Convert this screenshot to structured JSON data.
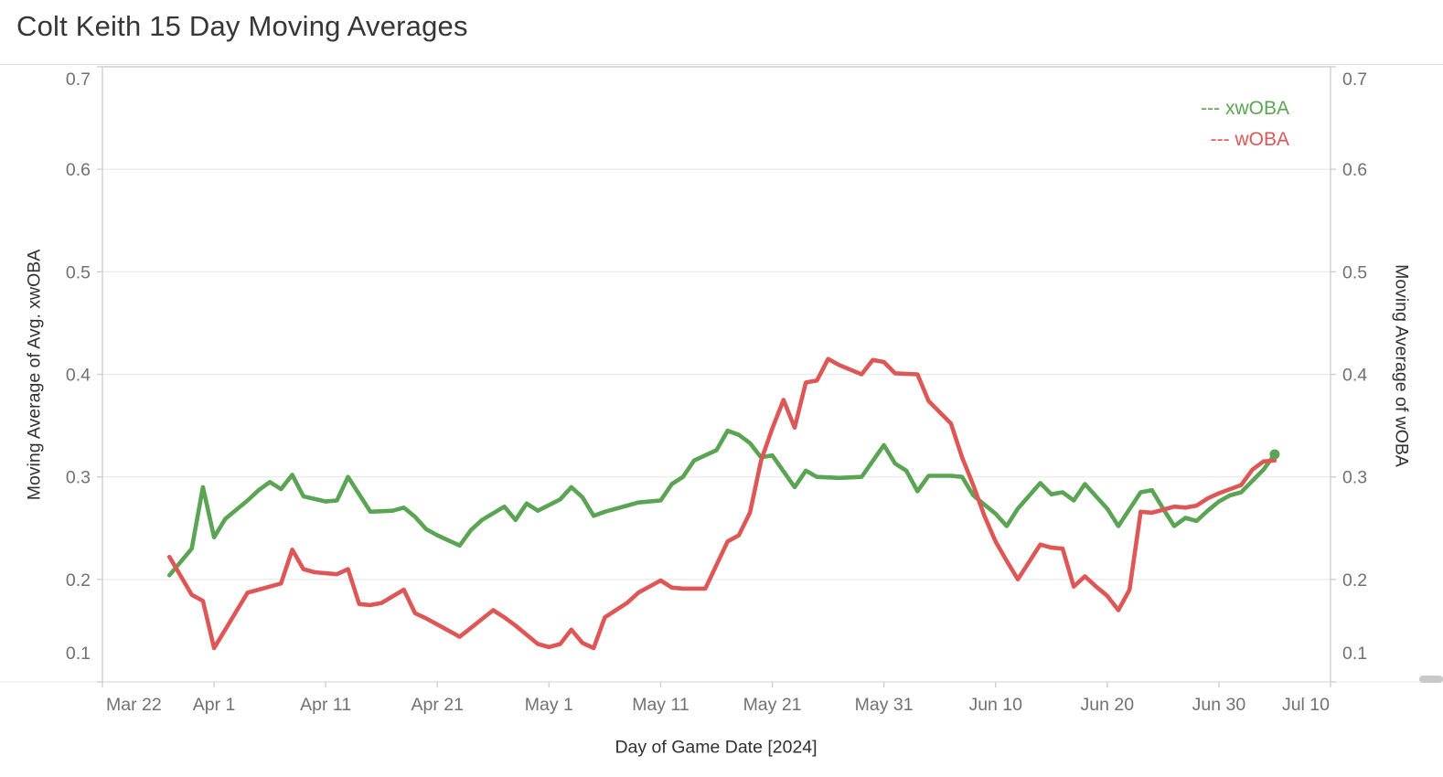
{
  "chart_data": {
    "type": "line",
    "title": "Colt Keith 15 Day Moving Averages",
    "xlabel": "Day of Game Date [2024]",
    "ylabel_left": "Moving Average of Avg. xwOBA",
    "ylabel_right": "Moving Average of wOBA",
    "grid": true,
    "legend_position": "top-right-inside",
    "x_axis": {
      "start_label": "Mar 22",
      "end_label": "Jul 10",
      "days_span": 110,
      "tick_day_offsets": [
        0,
        10,
        20,
        30,
        40,
        50,
        60,
        70,
        80,
        90,
        100,
        110
      ],
      "tick_labels": [
        "Mar 22",
        "Apr 1",
        "Apr 11",
        "Apr 21",
        "May 1",
        "May 11",
        "May 21",
        "May 31",
        "Jun 10",
        "Jun 20",
        "Jun 30",
        "Jul 10"
      ]
    },
    "y_axis": {
      "min": 0.1,
      "max": 0.7,
      "ticks": [
        0.7,
        0.6,
        0.5,
        0.4,
        0.3,
        0.2,
        0.1
      ],
      "tick_labels": [
        "0.7",
        "0.6",
        "0.5",
        "0.4",
        "0.3",
        "0.2",
        "0.1"
      ]
    },
    "legend": [
      {
        "label": "--- xwOBA",
        "color": "#5aa454"
      },
      {
        "label": "--- wOBA",
        "color": "#de5757"
      }
    ],
    "series": [
      {
        "name": "xwOBA",
        "color": "#5aa454",
        "end_dot": true,
        "points": [
          [
            6,
            0.204
          ],
          [
            8,
            0.23
          ],
          [
            9,
            0.29
          ],
          [
            10,
            0.241
          ],
          [
            11,
            0.259
          ],
          [
            13,
            0.277
          ],
          [
            14,
            0.287
          ],
          [
            15,
            0.295
          ],
          [
            16,
            0.288
          ],
          [
            17,
            0.302
          ],
          [
            18,
            0.281
          ],
          [
            20,
            0.276
          ],
          [
            21,
            0.277
          ],
          [
            22,
            0.3
          ],
          [
            24,
            0.266
          ],
          [
            26,
            0.267
          ],
          [
            27,
            0.27
          ],
          [
            28,
            0.261
          ],
          [
            29,
            0.249
          ],
          [
            30,
            0.243
          ],
          [
            32,
            0.233
          ],
          [
            33,
            0.248
          ],
          [
            34,
            0.258
          ],
          [
            36,
            0.271
          ],
          [
            37,
            0.258
          ],
          [
            38,
            0.274
          ],
          [
            39,
            0.267
          ],
          [
            41,
            0.278
          ],
          [
            42,
            0.29
          ],
          [
            43,
            0.28
          ],
          [
            44,
            0.262
          ],
          [
            45,
            0.266
          ],
          [
            47,
            0.272
          ],
          [
            48,
            0.275
          ],
          [
            50,
            0.277
          ],
          [
            51,
            0.293
          ],
          [
            52,
            0.3
          ],
          [
            53,
            0.316
          ],
          [
            55,
            0.326
          ],
          [
            56,
            0.345
          ],
          [
            57,
            0.341
          ],
          [
            58,
            0.333
          ],
          [
            59,
            0.319
          ],
          [
            60,
            0.321
          ],
          [
            62,
            0.29
          ],
          [
            63,
            0.306
          ],
          [
            64,
            0.3
          ],
          [
            66,
            0.299
          ],
          [
            68,
            0.3
          ],
          [
            70,
            0.331
          ],
          [
            71,
            0.313
          ],
          [
            72,
            0.306
          ],
          [
            73,
            0.286
          ],
          [
            74,
            0.301
          ],
          [
            76,
            0.301
          ],
          [
            77,
            0.3
          ],
          [
            78,
            0.282
          ],
          [
            79,
            0.273
          ],
          [
            80,
            0.264
          ],
          [
            81,
            0.252
          ],
          [
            82,
            0.269
          ],
          [
            84,
            0.294
          ],
          [
            85,
            0.283
          ],
          [
            86,
            0.285
          ],
          [
            87,
            0.277
          ],
          [
            88,
            0.293
          ],
          [
            89,
            0.281
          ],
          [
            90,
            0.269
          ],
          [
            91,
            0.252
          ],
          [
            93,
            0.285
          ],
          [
            94,
            0.287
          ],
          [
            95,
            0.269
          ],
          [
            96,
            0.252
          ],
          [
            97,
            0.26
          ],
          [
            98,
            0.257
          ],
          [
            99,
            0.267
          ],
          [
            100,
            0.276
          ],
          [
            101,
            0.282
          ],
          [
            102,
            0.285
          ],
          [
            104,
            0.307
          ],
          [
            105,
            0.322
          ]
        ]
      },
      {
        "name": "wOBA",
        "color": "#de5757",
        "end_dot": false,
        "points": [
          [
            6,
            0.222
          ],
          [
            8,
            0.185
          ],
          [
            9,
            0.179
          ],
          [
            10,
            0.133
          ],
          [
            13,
            0.187
          ],
          [
            15,
            0.193
          ],
          [
            16,
            0.196
          ],
          [
            17,
            0.229
          ],
          [
            18,
            0.21
          ],
          [
            19,
            0.207
          ],
          [
            21,
            0.205
          ],
          [
            22,
            0.21
          ],
          [
            23,
            0.176
          ],
          [
            24,
            0.175
          ],
          [
            25,
            0.177
          ],
          [
            27,
            0.19
          ],
          [
            28,
            0.167
          ],
          [
            29,
            0.162
          ],
          [
            30,
            0.156
          ],
          [
            31,
            0.15
          ],
          [
            32,
            0.144
          ],
          [
            35,
            0.17
          ],
          [
            36,
            0.163
          ],
          [
            37,
            0.155
          ],
          [
            39,
            0.137
          ],
          [
            40,
            0.134
          ],
          [
            41,
            0.137
          ],
          [
            42,
            0.151
          ],
          [
            43,
            0.138
          ],
          [
            44,
            0.133
          ],
          [
            45,
            0.163
          ],
          [
            47,
            0.177
          ],
          [
            48,
            0.187
          ],
          [
            50,
            0.199
          ],
          [
            51,
            0.192
          ],
          [
            52,
            0.191
          ],
          [
            54,
            0.191
          ],
          [
            55,
            0.214
          ],
          [
            56,
            0.237
          ],
          [
            57,
            0.243
          ],
          [
            58,
            0.265
          ],
          [
            59,
            0.316
          ],
          [
            60,
            0.347
          ],
          [
            61,
            0.375
          ],
          [
            62,
            0.348
          ],
          [
            63,
            0.392
          ],
          [
            64,
            0.394
          ],
          [
            65,
            0.415
          ],
          [
            66,
            0.409
          ],
          [
            68,
            0.4
          ],
          [
            69,
            0.414
          ],
          [
            70,
            0.412
          ],
          [
            71,
            0.401
          ],
          [
            73,
            0.4
          ],
          [
            74,
            0.374
          ],
          [
            75,
            0.363
          ],
          [
            76,
            0.352
          ],
          [
            77,
            0.319
          ],
          [
            78,
            0.292
          ],
          [
            79,
            0.262
          ],
          [
            80,
            0.237
          ],
          [
            81,
            0.218
          ],
          [
            82,
            0.2
          ],
          [
            84,
            0.234
          ],
          [
            85,
            0.231
          ],
          [
            86,
            0.23
          ],
          [
            87,
            0.193
          ],
          [
            88,
            0.203
          ],
          [
            89,
            0.193
          ],
          [
            90,
            0.184
          ],
          [
            91,
            0.17
          ],
          [
            92,
            0.19
          ],
          [
            93,
            0.266
          ],
          [
            94,
            0.265
          ],
          [
            95,
            0.268
          ],
          [
            96,
            0.271
          ],
          [
            97,
            0.27
          ],
          [
            98,
            0.272
          ],
          [
            99,
            0.279
          ],
          [
            100,
            0.284
          ],
          [
            101,
            0.288
          ],
          [
            102,
            0.292
          ],
          [
            103,
            0.307
          ],
          [
            104,
            0.315
          ],
          [
            105,
            0.316
          ]
        ]
      }
    ],
    "colors": {
      "grid": "#ececec",
      "border": "#cfcfcf",
      "tick_label": "#717171",
      "axis_title": "#303030",
      "title": "#363636"
    }
  }
}
